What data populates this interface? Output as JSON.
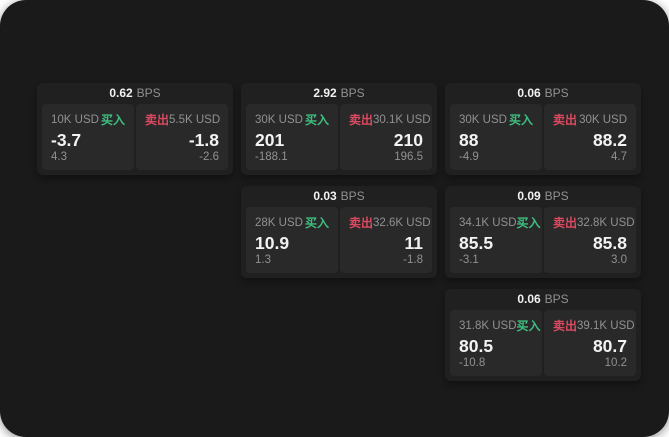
{
  "labels": {
    "bps": "BPS",
    "buy": "买入",
    "sell": "卖出"
  },
  "colors": {
    "page-bg": "#1a1a1b",
    "card-bg": "#202021",
    "tile-bg": "#29292a",
    "buy-green": "#3fbf7f",
    "sell-red": "#dd4a60",
    "text-primary": "#f2f2f2",
    "text-muted": "#919191"
  },
  "cards": [
    {
      "position": "row1-col1",
      "bps": "0.62",
      "buy": {
        "size": "10K USD",
        "price": "-3.7",
        "delta": "4.3"
      },
      "sell": {
        "size": "5.5K USD",
        "price": "-1.8",
        "delta": "-2.6"
      }
    },
    {
      "position": "row1-col2",
      "bps": "2.92",
      "buy": {
        "size": "30K USD",
        "price": "201",
        "delta": "-188.1"
      },
      "sell": {
        "size": "30.1K USD",
        "price": "210",
        "delta": "196.5"
      }
    },
    {
      "position": "row1-col3",
      "bps": "0.06",
      "buy": {
        "size": "30K USD",
        "price": "88",
        "delta": "-4.9"
      },
      "sell": {
        "size": "30K USD",
        "price": "88.2",
        "delta": "4.7"
      }
    },
    {
      "position": "row2-col2",
      "bps": "0.03",
      "buy": {
        "size": "28K USD",
        "price": "10.9",
        "delta": "1.3"
      },
      "sell": {
        "size": "32.6K USD",
        "price": "11",
        "delta": "-1.8"
      }
    },
    {
      "position": "row2-col3",
      "bps": "0.09",
      "buy": {
        "size": "34.1K USD",
        "price": "85.5",
        "delta": "-3.1"
      },
      "sell": {
        "size": "32.8K USD",
        "price": "85.8",
        "delta": "3.0"
      }
    },
    {
      "position": "row3-col3",
      "bps": "0.06",
      "buy": {
        "size": "31.8K USD",
        "price": "80.5",
        "delta": "-10.8"
      },
      "sell": {
        "size": "39.1K USD",
        "price": "80.7",
        "delta": "10.2"
      }
    }
  ]
}
